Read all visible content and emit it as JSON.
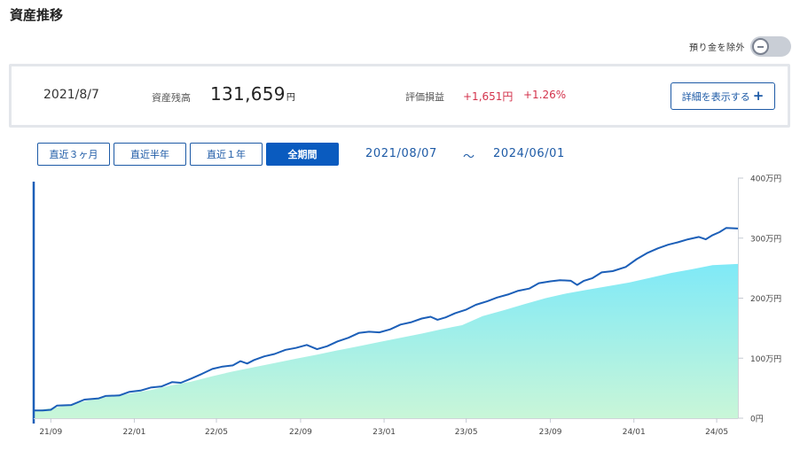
{
  "header": {
    "title": "資産推移"
  },
  "toggle": {
    "label": "預り金を除外",
    "state": "off"
  },
  "summary": {
    "date": "2021/8/7",
    "balance_label": "資産残高",
    "balance_value": "131,659",
    "balance_unit": "円",
    "pl_label": "評価損益",
    "pl_value": "+1,651円",
    "pl_percent": "+1.26%",
    "detail_button": "詳細を表示する"
  },
  "period": {
    "tabs": [
      {
        "label": "直近３ヶ月",
        "active": false
      },
      {
        "label": "直近半年",
        "active": false
      },
      {
        "label": "直近１年",
        "active": false
      },
      {
        "label": "全期間",
        "active": true
      }
    ],
    "from": "2021/08/07",
    "separator": "～",
    "to": "2024/06/01"
  },
  "colors": {
    "accent": "#0a5bbf",
    "line": "#1c5fb8",
    "area_top": "#7fe9f7",
    "area_bottom": "#c9f6d8",
    "positive": "#d3324b"
  },
  "chart_data": {
    "type": "area",
    "x_start": "2021-08-07",
    "x_end": "2024-06-01",
    "x_tick_labels": [
      "21/09",
      "22/01",
      "22/05",
      "22/09",
      "23/01",
      "23/05",
      "23/09",
      "24/01",
      "24/05"
    ],
    "x_tick_dates": [
      "2021-09-01",
      "2022-01-01",
      "2022-05-01",
      "2022-09-01",
      "2023-01-01",
      "2023-05-01",
      "2023-09-01",
      "2024-01-01",
      "2024-05-01"
    ],
    "y_ticks": [
      0,
      100,
      200,
      300,
      400
    ],
    "y_tick_labels": [
      "0円",
      "100万円",
      "200万円",
      "300万円",
      "400万円"
    ],
    "ylim": [
      0,
      400
    ],
    "y_unit": "万円",
    "grid": false,
    "series": [
      {
        "style": "line",
        "points": [
          [
            "2021-08-07",
            13
          ],
          [
            "2021-08-20",
            13
          ],
          [
            "2021-09-01",
            14
          ],
          [
            "2021-09-10",
            21
          ],
          [
            "2021-10-01",
            22
          ],
          [
            "2021-10-20",
            31
          ],
          [
            "2021-11-10",
            33
          ],
          [
            "2021-11-20",
            37
          ],
          [
            "2021-12-10",
            38
          ],
          [
            "2021-12-25",
            44
          ],
          [
            "2022-01-10",
            46
          ],
          [
            "2022-01-25",
            51
          ],
          [
            "2022-02-10",
            53
          ],
          [
            "2022-02-25",
            60
          ],
          [
            "2022-03-10",
            59
          ],
          [
            "2022-03-25",
            66
          ],
          [
            "2022-04-10",
            74
          ],
          [
            "2022-04-25",
            82
          ],
          [
            "2022-05-10",
            86
          ],
          [
            "2022-05-25",
            88
          ],
          [
            "2022-06-05",
            95
          ],
          [
            "2022-06-15",
            91
          ],
          [
            "2022-06-25",
            97
          ],
          [
            "2022-07-10",
            103
          ],
          [
            "2022-07-25",
            107
          ],
          [
            "2022-08-10",
            114
          ],
          [
            "2022-08-25",
            117
          ],
          [
            "2022-09-10",
            122
          ],
          [
            "2022-09-25",
            115
          ],
          [
            "2022-10-10",
            120
          ],
          [
            "2022-10-25",
            128
          ],
          [
            "2022-11-10",
            134
          ],
          [
            "2022-11-25",
            142
          ],
          [
            "2022-12-10",
            144
          ],
          [
            "2022-12-25",
            143
          ],
          [
            "2023-01-10",
            148
          ],
          [
            "2023-01-25",
            156
          ],
          [
            "2023-02-10",
            160
          ],
          [
            "2023-02-25",
            166
          ],
          [
            "2023-03-10",
            169
          ],
          [
            "2023-03-20",
            164
          ],
          [
            "2023-04-01",
            168
          ],
          [
            "2023-04-15",
            175
          ],
          [
            "2023-05-01",
            181
          ],
          [
            "2023-05-15",
            189
          ],
          [
            "2023-06-01",
            195
          ],
          [
            "2023-06-15",
            201
          ],
          [
            "2023-07-01",
            206
          ],
          [
            "2023-07-15",
            212
          ],
          [
            "2023-08-01",
            216
          ],
          [
            "2023-08-15",
            225
          ],
          [
            "2023-09-01",
            228
          ],
          [
            "2023-09-15",
            230
          ],
          [
            "2023-10-01",
            229
          ],
          [
            "2023-10-10",
            222
          ],
          [
            "2023-10-20",
            229
          ],
          [
            "2023-11-01",
            233
          ],
          [
            "2023-11-15",
            243
          ],
          [
            "2023-12-01",
            245
          ],
          [
            "2023-12-20",
            252
          ],
          [
            "2024-01-05",
            265
          ],
          [
            "2024-01-20",
            275
          ],
          [
            "2024-02-05",
            283
          ],
          [
            "2024-02-20",
            289
          ],
          [
            "2024-03-05",
            293
          ],
          [
            "2024-03-20",
            298
          ],
          [
            "2024-04-05",
            302
          ],
          [
            "2024-04-15",
            298
          ],
          [
            "2024-04-25",
            305
          ],
          [
            "2024-05-05",
            310
          ],
          [
            "2024-05-15",
            317
          ],
          [
            "2024-06-01",
            316
          ]
        ]
      },
      {
        "style": "area",
        "points": [
          [
            "2021-08-07",
            13
          ],
          [
            "2021-09-10",
            18
          ],
          [
            "2021-10-20",
            28
          ],
          [
            "2021-11-20",
            35
          ],
          [
            "2021-12-25",
            41
          ],
          [
            "2022-01-25",
            47
          ],
          [
            "2022-02-25",
            55
          ],
          [
            "2022-03-25",
            61
          ],
          [
            "2022-04-25",
            70
          ],
          [
            "2022-05-25",
            78
          ],
          [
            "2022-06-25",
            85
          ],
          [
            "2022-07-25",
            92
          ],
          [
            "2022-08-25",
            99
          ],
          [
            "2022-09-25",
            106
          ],
          [
            "2022-10-25",
            113
          ],
          [
            "2022-11-25",
            120
          ],
          [
            "2022-12-25",
            127
          ],
          [
            "2023-01-25",
            134
          ],
          [
            "2023-02-25",
            141
          ],
          [
            "2023-03-25",
            148
          ],
          [
            "2023-04-25",
            155
          ],
          [
            "2023-05-25",
            170
          ],
          [
            "2023-06-25",
            180
          ],
          [
            "2023-07-25",
            190
          ],
          [
            "2023-08-25",
            200
          ],
          [
            "2023-09-25",
            208
          ],
          [
            "2023-10-25",
            214
          ],
          [
            "2023-11-25",
            220
          ],
          [
            "2023-12-25",
            226
          ],
          [
            "2024-01-25",
            234
          ],
          [
            "2024-02-25",
            242
          ],
          [
            "2024-03-25",
            248
          ],
          [
            "2024-04-25",
            255
          ],
          [
            "2024-06-01",
            257
          ]
        ]
      }
    ]
  }
}
